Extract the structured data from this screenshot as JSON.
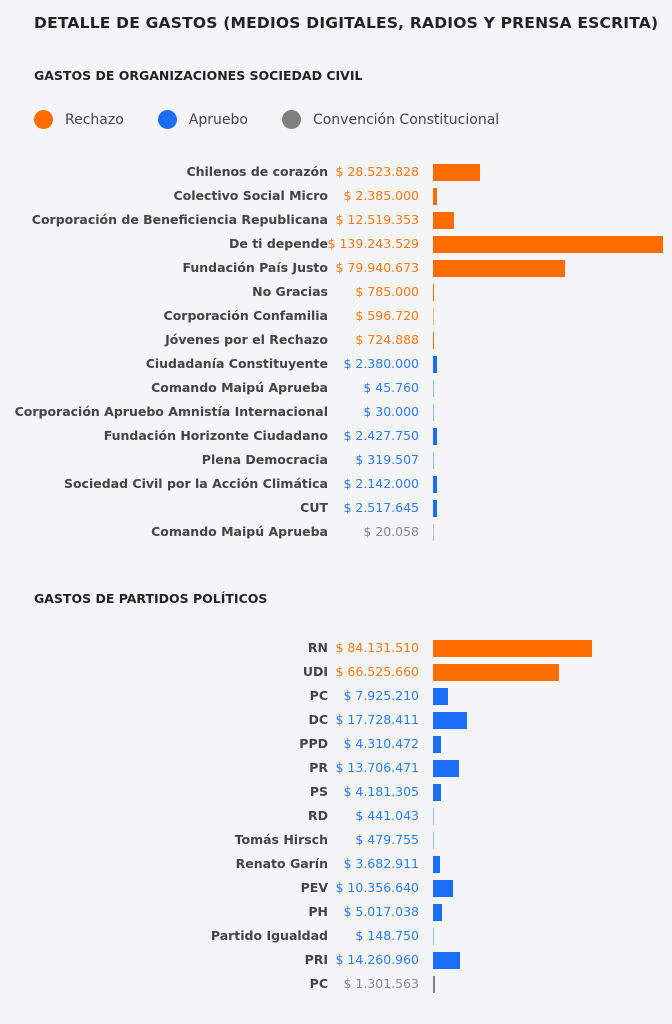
{
  "title": "DETALLE DE GASTOS (MEDIOS DIGITALES, RADIOS Y PRENSA ESCRITA)",
  "colors": {
    "Rechazo": "#ff6d00",
    "Apruebo": "#1a6ef5",
    "Convención Constitucional": "#808080"
  },
  "legend": [
    "Rechazo",
    "Apruebo",
    "Convención Constitucional"
  ],
  "chart_data": [
    {
      "type": "bar",
      "orientation": "horizontal",
      "title": "GASTOS DE ORGANIZACIONES SOCIEDAD CIVIL",
      "categories": [
        "Chilenos de corazón",
        "Colectivo Social Micro",
        "Corporación de Beneficiencia Republicana",
        "De ti depende",
        "Fundación País Justo",
        "No Gracias",
        "Corporación Confamilia",
        "Jóvenes por el Rechazo",
        "Ciudadanía Constituyente",
        "Comando Maipú Aprueba",
        "Corporación Apruebo Amnistía Internacional",
        "Fundación Horizonte Ciudadano",
        "Plena Democracia",
        "Sociedad Civil por la Acción Climática",
        "CUT",
        "Comando Maipú Aprueba"
      ],
      "values": [
        28523828,
        2385000,
        12519353,
        139243529,
        79940673,
        785000,
        596720,
        724888,
        2380000,
        45760,
        30000,
        2427750,
        319507,
        2142000,
        2517645,
        20058
      ],
      "labels": [
        "$ 28.523.828",
        "$ 2.385.000",
        "$ 12.519.353",
        "$ 139.243.529",
        "$ 79.940.673",
        "$ 785.000",
        "$ 596.720",
        "$ 724.888",
        "$ 2.380.000",
        "$ 45.760",
        "$ 30.000",
        "$ 2.427.750",
        "$ 319.507",
        "$ 2.142.000",
        "$ 2.517.645",
        "$ 20.058"
      ],
      "groups": [
        "Rechazo",
        "Rechazo",
        "Rechazo",
        "Rechazo",
        "Rechazo",
        "Rechazo",
        "Rechazo",
        "Rechazo",
        "Apruebo",
        "Apruebo",
        "Apruebo",
        "Apruebo",
        "Apruebo",
        "Apruebo",
        "Apruebo",
        "Convención Constitucional"
      ]
    },
    {
      "type": "bar",
      "orientation": "horizontal",
      "title": "GASTOS DE PARTIDOS POLÍTICOS",
      "categories": [
        "RN",
        "UDI",
        "PC",
        "DC",
        "PPD",
        "PR",
        "PS",
        "RD",
        "Tomás Hirsch",
        "Renato Garín",
        "PEV",
        "PH",
        "Partido Igualdad",
        "PRI",
        "PC"
      ],
      "values": [
        84131510,
        66525660,
        7925210,
        17728411,
        4310472,
        13706471,
        4181305,
        441043,
        479755,
        3682911,
        10356640,
        5017038,
        148750,
        14260960,
        1301563
      ],
      "labels": [
        "$ 84.131.510",
        "$ 66.525.660",
        "$ 7.925.210",
        "$ 17.728.411",
        "$ 4.310.472",
        "$ 13.706.471",
        "$ 4.181.305",
        "$ 441.043",
        "$ 479.755",
        "$ 3.682.911",
        "$ 10.356.640",
        "$ 5.017.038",
        "$ 148.750",
        "$ 14.260.960",
        "$ 1.301.563"
      ],
      "groups": [
        "Rechazo",
        "Rechazo",
        "Apruebo",
        "Apruebo",
        "Apruebo",
        "Apruebo",
        "Apruebo",
        "Apruebo",
        "Apruebo",
        "Apruebo",
        "Apruebo",
        "Apruebo",
        "Apruebo",
        "Apruebo",
        "Convención Constitucional"
      ]
    }
  ]
}
